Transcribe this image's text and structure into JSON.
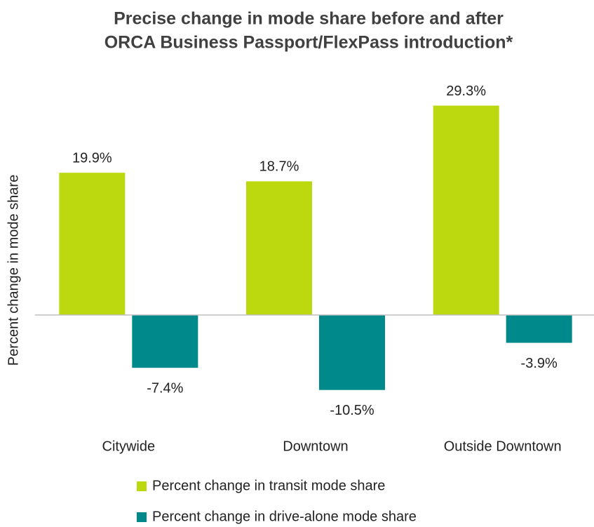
{
  "chart_data": {
    "type": "bar",
    "title": [
      "Precise change in mode share before and after",
      "ORCA Business Passport/FlexPass introduction*"
    ],
    "y_label": "Percent change in mode share",
    "categories": [
      "Citywide",
      "Downtown",
      "Outside Downtown"
    ],
    "series": [
      {
        "name": "Percent change in transit mode share",
        "color": "#bcd90f",
        "values": [
          19.9,
          18.7,
          29.3
        ],
        "value_labels": [
          "19.9%",
          "18.7%",
          "29.3%"
        ]
      },
      {
        "name": "Percent change in drive-alone mode share",
        "color": "#00898a",
        "values": [
          -7.4,
          -10.5,
          -3.9
        ],
        "value_labels": [
          "-7.4%",
          "-10.5%",
          "-3.9%"
        ]
      }
    ],
    "ylim": [
      -12,
      32
    ],
    "legend": "bottom"
  }
}
